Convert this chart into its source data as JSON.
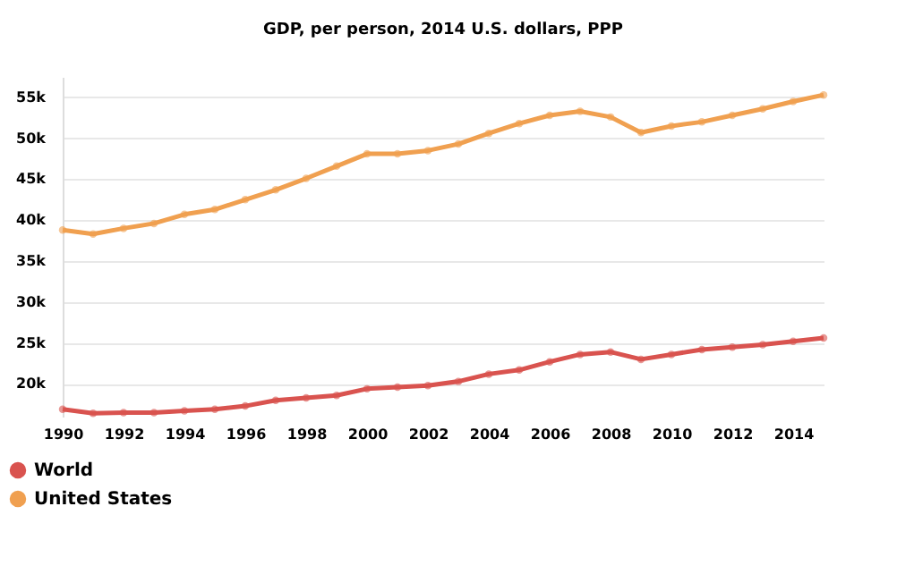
{
  "chart_data": {
    "type": "line",
    "title": "GDP, per person, 2014 U.S. dollars, PPP",
    "x": [
      1990,
      1991,
      1992,
      1993,
      1994,
      1995,
      1996,
      1997,
      1998,
      1999,
      2000,
      2001,
      2002,
      2003,
      2004,
      2005,
      2006,
      2007,
      2008,
      2009,
      2010,
      2011,
      2012,
      2013,
      2014,
      2015
    ],
    "series": [
      {
        "name": "World",
        "color": "#d9534f",
        "values": [
          16900,
          16400,
          16500,
          16500,
          16700,
          16900,
          17300,
          18000,
          18300,
          18600,
          19400,
          19600,
          19800,
          20300,
          21200,
          21700,
          22700,
          23600,
          23900,
          23000,
          23600,
          24200,
          24500,
          24800,
          25200,
          25600
        ]
      },
      {
        "name": "United States",
        "color": "#f0a050",
        "values": [
          38800,
          38300,
          39000,
          39600,
          40700,
          41300,
          42500,
          43700,
          45100,
          46600,
          48100,
          48100,
          48500,
          49300,
          50600,
          51800,
          52800,
          53300,
          52600,
          50700,
          51500,
          52000,
          52800,
          53600,
          54500,
          55300
        ]
      }
    ],
    "xlim": [
      1990,
      2015
    ],
    "xticks": [
      1990,
      1992,
      1994,
      1996,
      1998,
      2000,
      2002,
      2004,
      2006,
      2008,
      2010,
      2012,
      2014
    ],
    "ylim": [
      16000,
      57500
    ],
    "yticks": [
      {
        "value": 20000,
        "label": "20k"
      },
      {
        "value": 25000,
        "label": "25k"
      },
      {
        "value": 30000,
        "label": "30k"
      },
      {
        "value": 35000,
        "label": "35k"
      },
      {
        "value": 40000,
        "label": "40k"
      },
      {
        "value": 45000,
        "label": "45k"
      },
      {
        "value": 50000,
        "label": "50k"
      },
      {
        "value": 55000,
        "label": "55k"
      }
    ],
    "grid": "y",
    "legend": "bottom left",
    "marker": "circle",
    "line_style": "solid"
  }
}
